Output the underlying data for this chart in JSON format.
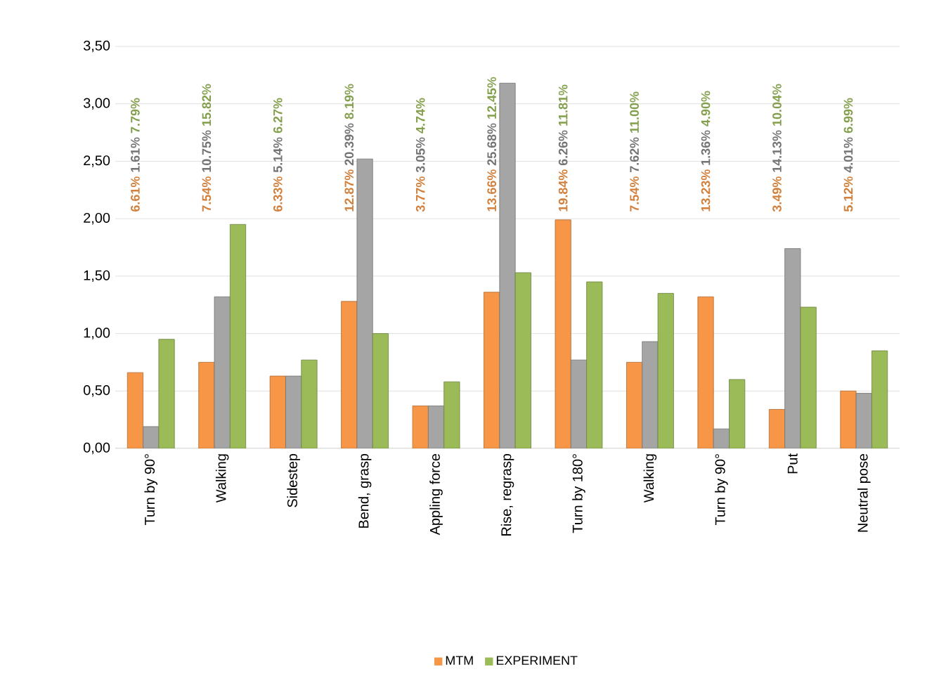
{
  "chart_data": {
    "type": "bar",
    "categories": [
      "Turn by 90°",
      "Walking",
      "Sidestep",
      "Bend, grasp",
      "Appling force",
      "Rise, regrasp",
      "Turn by 180°",
      "Walking",
      "Turn by 90°",
      "Put",
      "Neutral pose"
    ],
    "series": [
      {
        "name": "MTM",
        "color": "#f79646",
        "values": [
          0.66,
          0.75,
          0.63,
          1.28,
          0.37,
          1.36,
          1.99,
          0.75,
          1.32,
          0.34,
          0.5
        ]
      },
      {
        "color": "#a5a5a5",
        "values": [
          0.19,
          1.32,
          0.63,
          2.52,
          0.37,
          3.18,
          0.77,
          0.93,
          0.17,
          1.74,
          0.48
        ]
      },
      {
        "name": "EXPERIMENT",
        "color": "#9bbb59",
        "values": [
          0.95,
          1.95,
          0.77,
          1.0,
          0.58,
          1.53,
          1.45,
          1.35,
          0.6,
          1.23,
          0.85
        ]
      }
    ],
    "annotations": [
      "6.61%",
      "1.61%",
      "7.79%",
      "7.54%",
      "10.75%",
      "15.82%",
      "6.33%",
      "5.14%",
      "6.27%",
      "12.87%",
      "20.39%",
      "8.19%",
      "3.77%",
      "3.05%",
      "4.74%",
      "13.66%",
      "25.68%",
      "12.45%",
      "19.84%",
      "6.26%",
      "11.81%",
      "7.54%",
      "7.62%",
      "11.00%",
      "13.23%",
      "1.36%",
      "4.90%",
      "3.49%",
      "14.13%",
      "10.04%",
      "5.12%",
      "4.01%",
      "6.99%"
    ],
    "ylim": [
      0,
      3.5
    ],
    "yticks": [
      {
        "value": 0,
        "label": "0,00"
      },
      {
        "value": 0.5,
        "label": "0,50"
      },
      {
        "value": 1,
        "label": "1,00"
      },
      {
        "value": 1.5,
        "label": "1,50"
      },
      {
        "value": 2,
        "label": "2,00"
      },
      {
        "value": 2.5,
        "label": "2,50"
      },
      {
        "value": 3,
        "label": "3,00"
      },
      {
        "value": 3.5,
        "label": "3,50"
      }
    ],
    "grid": "y",
    "legend": "bottom"
  }
}
